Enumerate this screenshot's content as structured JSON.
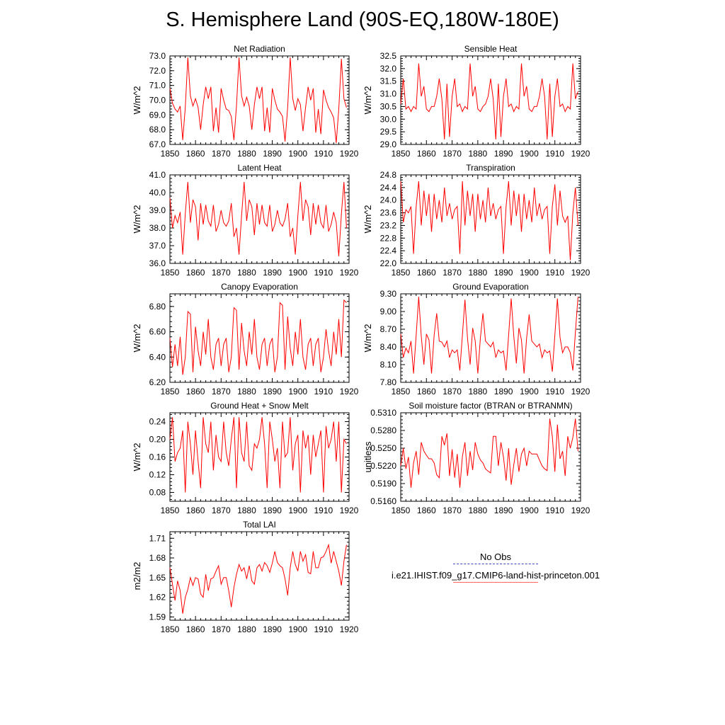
{
  "title": "S. Hemisphere Land (90S-EQ,180W-180E)",
  "legend": {
    "obs_label": "No Obs",
    "model_label": "i.e21.IHIST.f09_g17.CMIP6-land-hist-princeton.001",
    "obs_color": "#4040c0",
    "model_color": "#ff0000"
  },
  "chart_data": [
    {
      "type": "line",
      "title": "Net Radiation",
      "ylabel": "W/m^2",
      "xlim": [
        1850,
        1920
      ],
      "ylim": [
        67.0,
        73.0
      ],
      "x_ticks": [
        "1850",
        "1860",
        "1870",
        "1880",
        "1890",
        "1900",
        "1910",
        "1920"
      ],
      "y_ticks": [
        "67.0",
        "68.0",
        "69.0",
        "70.0",
        "71.0",
        "72.0",
        "73.0"
      ],
      "x_start": 1850,
      "series": [
        {
          "values": [
            70.8,
            69.8,
            69.4,
            69.2,
            69.6,
            67.3,
            69.5,
            72.9,
            70.3,
            69.6,
            70.1,
            69.5,
            68.0,
            69.7,
            70.9,
            70.1,
            70.9,
            67.9,
            69.5,
            67.8,
            70.8,
            70.0,
            69.4,
            69.3,
            68.9,
            67.3,
            69.6,
            72.9,
            70.3,
            69.6,
            70.2,
            69.6,
            68.0,
            69.7,
            70.9,
            70.1,
            70.9,
            67.9,
            69.5,
            67.8,
            70.8,
            70.0,
            69.4,
            69.2,
            68.9,
            67.2,
            69.5,
            72.9,
            70.1,
            69.3,
            70.1,
            69.7,
            67.9,
            69.5,
            70.9,
            70.0,
            70.8,
            67.8,
            69.4,
            67.7,
            70.7,
            70.0,
            69.5,
            69.2,
            68.8,
            67.1,
            69.4,
            72.8,
            70.1,
            69.5
          ]
        }
      ]
    },
    {
      "type": "line",
      "title": "Sensible Heat",
      "ylabel": "W/m^2",
      "xlim": [
        1850,
        1920
      ],
      "ylim": [
        29.0,
        32.5
      ],
      "x_ticks": [
        "1850",
        "1860",
        "1870",
        "1880",
        "1890",
        "1900",
        "1910",
        "1920"
      ],
      "y_ticks": [
        "29.0",
        "29.5",
        "30.0",
        "30.5",
        "31.0",
        "31.5",
        "32.0",
        "32.5"
      ],
      "x_start": 1850,
      "series": [
        {
          "values": [
            30.6,
            31.6,
            30.4,
            30.5,
            30.3,
            30.5,
            30.4,
            32.2,
            30.9,
            31.3,
            30.4,
            30.3,
            30.5,
            30.5,
            30.9,
            31.6,
            30.8,
            29.2,
            31.4,
            29.3,
            30.9,
            31.6,
            30.5,
            30.6,
            30.3,
            30.5,
            30.4,
            32.2,
            30.9,
            31.3,
            30.4,
            30.3,
            30.5,
            30.6,
            30.9,
            31.6,
            30.8,
            29.2,
            31.4,
            29.3,
            30.9,
            31.6,
            30.5,
            30.6,
            30.3,
            30.5,
            30.4,
            32.2,
            30.9,
            31.3,
            30.4,
            30.3,
            30.5,
            30.5,
            30.9,
            31.6,
            30.9,
            29.2,
            31.4,
            29.3,
            30.9,
            31.6,
            30.5,
            30.6,
            30.3,
            30.5,
            30.4,
            32.2,
            30.8,
            31.1
          ]
        }
      ]
    },
    {
      "type": "line",
      "title": "Latent Heat",
      "ylabel": "W/m^2",
      "xlim": [
        1850,
        1920
      ],
      "ylim": [
        36.0,
        41.0
      ],
      "x_ticks": [
        "1850",
        "1860",
        "1870",
        "1880",
        "1890",
        "1900",
        "1910",
        "1920"
      ],
      "y_ticks": [
        "36.0",
        "37.0",
        "38.0",
        "39.0",
        "40.0",
        "41.0"
      ],
      "x_start": 1850,
      "series": [
        {
          "values": [
            39.7,
            38.0,
            38.7,
            38.3,
            38.9,
            36.5,
            38.8,
            40.6,
            38.3,
            39.6,
            39.2,
            37.3,
            39.4,
            38.2,
            39.3,
            38.4,
            38.1,
            39.3,
            37.8,
            38.2,
            39.0,
            38.3,
            38.1,
            38.4,
            39.4,
            37.5,
            38.0,
            36.5,
            38.7,
            40.6,
            38.4,
            39.6,
            39.2,
            37.6,
            39.4,
            38.2,
            39.3,
            38.3,
            38.1,
            39.3,
            37.8,
            38.2,
            39.0,
            38.3,
            38.1,
            38.5,
            39.4,
            37.5,
            38.0,
            36.5,
            38.7,
            40.6,
            38.4,
            39.6,
            39.2,
            37.6,
            39.4,
            38.2,
            39.3,
            38.3,
            38.0,
            39.3,
            37.8,
            38.2,
            38.9,
            38.3,
            36.4,
            38.8,
            40.6,
            38.0
          ]
        }
      ]
    },
    {
      "type": "line",
      "title": "Transpiration",
      "ylabel": "W/m^2",
      "xlim": [
        1850,
        1920
      ],
      "ylim": [
        22.0,
        24.8
      ],
      "x_ticks": [
        "1850",
        "1860",
        "1870",
        "1880",
        "1890",
        "1900",
        "1910",
        "1920"
      ],
      "y_ticks": [
        "22.0",
        "22.4",
        "22.8",
        "23.2",
        "23.6",
        "24.0",
        "24.4",
        "24.8"
      ],
      "x_start": 1850,
      "series": [
        {
          "values": [
            24.6,
            23.3,
            23.7,
            23.6,
            23.8,
            22.3,
            23.8,
            24.6,
            23.2,
            24.3,
            23.5,
            24.2,
            23.0,
            24.2,
            23.4,
            24.0,
            23.3,
            24.4,
            23.5,
            23.9,
            23.4,
            23.7,
            23.8,
            22.3,
            24.6,
            23.2,
            24.3,
            23.5,
            24.2,
            23.0,
            24.2,
            23.4,
            24.0,
            23.3,
            24.4,
            23.5,
            23.9,
            23.4,
            23.7,
            23.8,
            22.3,
            23.8,
            24.6,
            23.2,
            24.3,
            23.5,
            24.2,
            23.0,
            24.2,
            23.4,
            24.0,
            23.3,
            24.4,
            23.5,
            23.9,
            23.4,
            23.7,
            23.8,
            22.3,
            23.8,
            24.5,
            23.2,
            24.3,
            23.5,
            23.3,
            23.5,
            22.1,
            23.6,
            24.4,
            23.2
          ]
        }
      ]
    },
    {
      "type": "line",
      "title": "Canopy Evaporation",
      "ylabel": "W/m^2",
      "xlim": [
        1850,
        1920
      ],
      "ylim": [
        6.2,
        6.9
      ],
      "x_ticks": [
        "1850",
        "1860",
        "1870",
        "1880",
        "1890",
        "1900",
        "1910",
        "1920"
      ],
      "y_ticks": [
        "6.20",
        "6.40",
        "6.60",
        "6.80"
      ],
      "x_start": 1850,
      "series": [
        {
          "values": [
            6.55,
            6.32,
            6.5,
            6.33,
            6.56,
            6.26,
            6.4,
            6.76,
            6.74,
            6.28,
            6.64,
            6.45,
            6.33,
            6.6,
            6.42,
            6.7,
            6.4,
            6.3,
            6.5,
            6.55,
            6.33,
            6.5,
            6.55,
            6.28,
            6.4,
            6.79,
            6.77,
            6.3,
            6.67,
            6.45,
            6.33,
            6.6,
            6.42,
            6.7,
            6.4,
            6.3,
            6.5,
            6.55,
            6.33,
            6.5,
            6.55,
            6.28,
            6.4,
            6.83,
            6.81,
            6.3,
            6.72,
            6.47,
            6.33,
            6.6,
            6.42,
            6.7,
            6.4,
            6.3,
            6.5,
            6.55,
            6.33,
            6.5,
            6.55,
            6.28,
            6.4,
            6.62,
            6.45,
            6.33,
            6.6,
            6.42,
            6.7,
            6.4,
            6.85,
            6.83
          ]
        }
      ]
    },
    {
      "type": "line",
      "title": "Ground Evaporation",
      "ylabel": "W/m^2",
      "xlim": [
        1850,
        1920
      ],
      "ylim": [
        7.8,
        9.3
      ],
      "x_ticks": [
        "1850",
        "1860",
        "1870",
        "1880",
        "1890",
        "1900",
        "1910",
        "1920"
      ],
      "y_ticks": [
        "7.80",
        "8.10",
        "8.40",
        "8.70",
        "9.00",
        "9.30"
      ],
      "x_start": 1850,
      "series": [
        {
          "values": [
            8.62,
            8.22,
            8.38,
            8.3,
            8.5,
            7.95,
            8.6,
            9.25,
            8.58,
            8.1,
            8.62,
            8.52,
            7.95,
            8.6,
            8.97,
            8.5,
            8.48,
            8.4,
            8.5,
            8.22,
            8.35,
            8.3,
            8.35,
            8.0,
            8.6,
            9.2,
            8.55,
            8.1,
            8.72,
            8.5,
            7.95,
            8.55,
            8.97,
            8.5,
            8.45,
            8.4,
            8.48,
            8.22,
            8.35,
            8.3,
            8.33,
            8.0,
            8.6,
            9.22,
            8.58,
            8.12,
            8.72,
            8.52,
            7.95,
            8.55,
            8.95,
            8.5,
            8.45,
            8.4,
            8.45,
            8.22,
            8.35,
            8.3,
            8.33,
            7.98,
            8.6,
            9.22,
            8.56,
            8.3,
            8.4,
            8.4,
            8.3,
            8.0,
            8.65,
            9.25
          ]
        }
      ]
    },
    {
      "type": "line",
      "title": "Ground Heat + Snow Melt",
      "ylabel": "W/m^2",
      "xlim": [
        1850,
        1920
      ],
      "ylim": [
        0.06,
        0.26
      ],
      "x_ticks": [
        "1850",
        "1860",
        "1870",
        "1880",
        "1890",
        "1900",
        "1910",
        "1920"
      ],
      "y_ticks": [
        "0.08",
        "0.12",
        "0.16",
        "0.20",
        "0.24"
      ],
      "x_start": 1850,
      "series": [
        {
          "values": [
            0.2,
            0.25,
            0.15,
            0.17,
            0.18,
            0.22,
            0.08,
            0.24,
            0.19,
            0.12,
            0.22,
            0.15,
            0.09,
            0.25,
            0.19,
            0.17,
            0.24,
            0.13,
            0.21,
            0.16,
            0.15,
            0.24,
            0.17,
            0.14,
            0.2,
            0.25,
            0.09,
            0.25,
            0.17,
            0.15,
            0.24,
            0.14,
            0.13,
            0.19,
            0.18,
            0.2,
            0.25,
            0.19,
            0.09,
            0.24,
            0.2,
            0.15,
            0.18,
            0.09,
            0.24,
            0.16,
            0.17,
            0.25,
            0.13,
            0.19,
            0.21,
            0.08,
            0.22,
            0.18,
            0.21,
            0.12,
            0.21,
            0.16,
            0.19,
            0.22,
            0.08,
            0.23,
            0.18,
            0.2,
            0.24,
            0.15,
            0.24,
            0.08,
            0.2,
            0.19
          ]
        }
      ]
    },
    {
      "type": "line",
      "title": "Soil moisture factor (BTRAN or BTRANMN)",
      "ylabel": "unitless",
      "xlim": [
        1850,
        1920
      ],
      "ylim": [
        0.516,
        0.531
      ],
      "x_ticks": [
        "1850",
        "1860",
        "1870",
        "1880",
        "1890",
        "1900",
        "1910",
        "1920"
      ],
      "y_ticks": [
        "0.5160",
        "0.5190",
        "0.5220",
        "0.5250",
        "0.5280",
        "0.5310"
      ],
      "x_start": 1850,
      "series": [
        {
          "values": [
            0.522,
            0.525,
            0.5215,
            0.5235,
            0.5183,
            0.5225,
            0.5245,
            0.5205,
            0.526,
            0.5245,
            0.5238,
            0.5232,
            0.5232,
            0.5225,
            0.5205,
            0.52,
            0.527,
            0.5255,
            0.5275,
            0.5203,
            0.5248,
            0.52,
            0.524,
            0.5183,
            0.5236,
            0.526,
            0.5203,
            0.5245,
            0.5213,
            0.526,
            0.524,
            0.523,
            0.5225,
            0.5215,
            0.5211,
            0.5208,
            0.527,
            0.527,
            0.522,
            0.526,
            0.5235,
            0.5195,
            0.525,
            0.5188,
            0.5222,
            0.525,
            0.521,
            0.524,
            0.525,
            0.522,
            0.5245,
            0.524,
            0.524,
            0.524,
            0.523,
            0.522,
            0.5215,
            0.5212,
            0.53,
            0.527,
            0.521,
            0.529,
            0.5232,
            0.5245,
            0.5203,
            0.527,
            0.525,
            0.5268,
            0.53,
            0.5245
          ]
        }
      ]
    },
    {
      "type": "line",
      "title": "Total LAI",
      "ylabel": "m2/m2",
      "xlim": [
        1850,
        1920
      ],
      "ylim": [
        1.585,
        1.72
      ],
      "x_ticks": [
        "1850",
        "1860",
        "1870",
        "1880",
        "1890",
        "1900",
        "1910",
        "1920"
      ],
      "y_ticks": [
        "1.59",
        "1.62",
        "1.65",
        "1.68",
        "1.71"
      ],
      "x_start": 1850,
      "series": [
        {
          "values": [
            1.665,
            1.64,
            1.615,
            1.645,
            1.63,
            1.595,
            1.62,
            1.632,
            1.65,
            1.638,
            1.65,
            1.648,
            1.625,
            1.62,
            1.655,
            1.63,
            1.648,
            1.65,
            1.66,
            1.668,
            1.64,
            1.65,
            1.65,
            1.63,
            1.605,
            1.635,
            1.655,
            1.67,
            1.66,
            1.665,
            1.648,
            1.668,
            1.645,
            1.64,
            1.665,
            1.67,
            1.66,
            1.673,
            1.668,
            1.658,
            1.672,
            1.69,
            1.673,
            1.668,
            1.665,
            1.648,
            1.623,
            1.665,
            1.69,
            1.67,
            1.66,
            1.69,
            1.675,
            1.685,
            1.658,
            1.656,
            1.69,
            1.665,
            1.665,
            1.68,
            1.682,
            1.69,
            1.7,
            1.672,
            1.69,
            1.675,
            1.66,
            1.638,
            1.675,
            1.7
          ]
        }
      ]
    }
  ]
}
